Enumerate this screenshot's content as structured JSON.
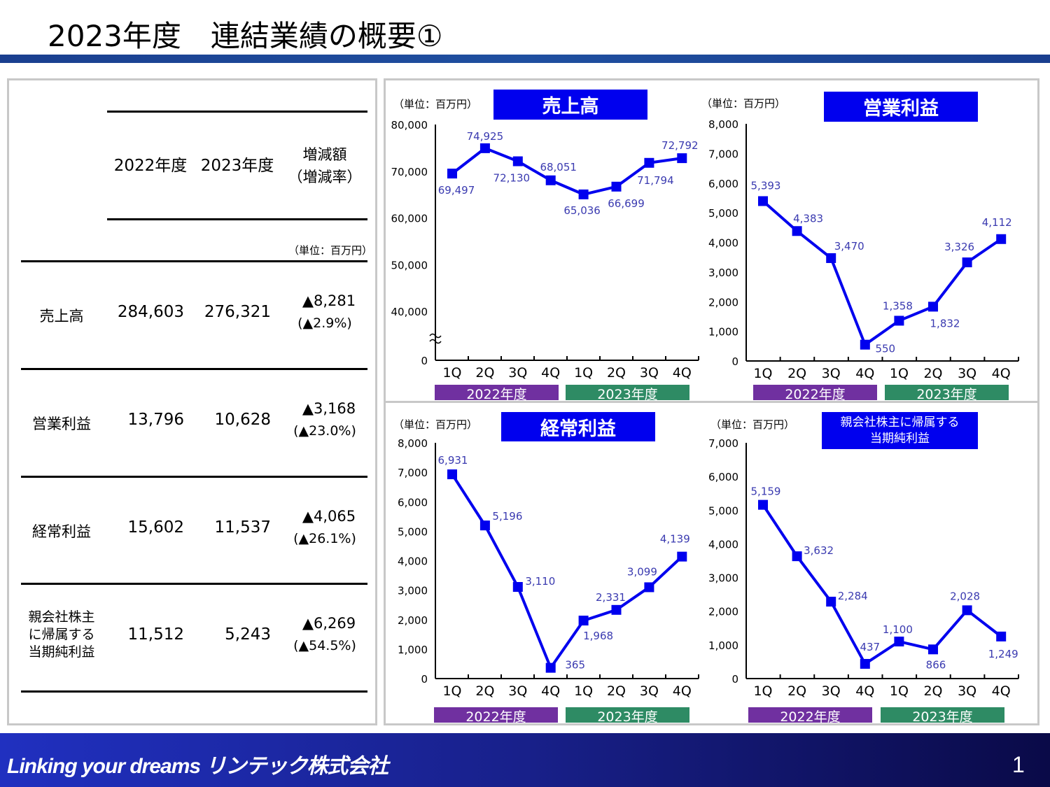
{
  "title": "2023年度　連結業績の概要①",
  "table": {
    "headers": {
      "y2022": "2022年度",
      "y2023": "2023年度",
      "change": "増減額",
      "rate": "（増減率）"
    },
    "unit": "（単位：百万円）",
    "rows": [
      {
        "label": "売上高",
        "y2022": "284,603",
        "y2023": "276,321",
        "change": "▲8,281",
        "rate": "(▲2.9%)"
      },
      {
        "label": "営業利益",
        "y2022": "13,796",
        "y2023": "10,628",
        "change": "▲3,168",
        "rate": "(▲23.0%)"
      },
      {
        "label": "経常利益",
        "y2022": "15,602",
        "y2023": "11,537",
        "change": "▲4,065",
        "rate": "(▲26.1%)"
      },
      {
        "label": "親会社株主\nに帰属する\n当期純利益",
        "y2022": "11,512",
        "y2023": "5,243",
        "change": "▲6,269",
        "rate": "(▲54.5%)"
      }
    ]
  },
  "chart_data": [
    {
      "type": "line",
      "title": "売上高",
      "unit": "（単位：百万円）",
      "categories": [
        "1Q",
        "2Q",
        "3Q",
        "4Q",
        "1Q",
        "2Q",
        "3Q",
        "4Q"
      ],
      "groups": [
        "2022年度",
        "2023年度"
      ],
      "values": [
        69497,
        74925,
        72130,
        68051,
        65036,
        66699,
        71794,
        72792
      ],
      "ylim": [
        0,
        80000
      ],
      "yticks": [
        0,
        40000,
        50000,
        60000,
        70000,
        80000
      ],
      "axis_break": [
        0,
        40000
      ],
      "grid": false
    },
    {
      "type": "line",
      "title": "営業利益",
      "unit": "（単位：百万円）",
      "categories": [
        "1Q",
        "2Q",
        "3Q",
        "4Q",
        "1Q",
        "2Q",
        "3Q",
        "4Q"
      ],
      "groups": [
        "2022年度",
        "2023年度"
      ],
      "values": [
        5393,
        4383,
        3470,
        550,
        1358,
        1832,
        3326,
        4112
      ],
      "ylim": [
        0,
        8000
      ],
      "yticks": [
        0,
        1000,
        2000,
        3000,
        4000,
        5000,
        6000,
        7000,
        8000
      ],
      "grid": false
    },
    {
      "type": "line",
      "title": "経常利益",
      "unit": "（単位：百万円）",
      "categories": [
        "1Q",
        "2Q",
        "3Q",
        "4Q",
        "1Q",
        "2Q",
        "3Q",
        "4Q"
      ],
      "groups": [
        "2022年度",
        "2023年度"
      ],
      "values": [
        6931,
        5196,
        3110,
        365,
        1968,
        2331,
        3099,
        4139
      ],
      "ylim": [
        0,
        8000
      ],
      "yticks": [
        0,
        1000,
        2000,
        3000,
        4000,
        5000,
        6000,
        7000,
        8000
      ],
      "grid": false
    },
    {
      "type": "line",
      "title": "親会社株主に帰属する\n当期純利益",
      "unit": "（単位：百万円）",
      "categories": [
        "1Q",
        "2Q",
        "3Q",
        "4Q",
        "1Q",
        "2Q",
        "3Q",
        "4Q"
      ],
      "groups": [
        "2022年度",
        "2023年度"
      ],
      "values": [
        5159,
        3632,
        2284,
        437,
        1100,
        866,
        2028,
        1249
      ],
      "ylim": [
        0,
        7000
      ],
      "yticks": [
        0,
        1000,
        2000,
        3000,
        4000,
        5000,
        6000,
        7000
      ],
      "grid": false
    }
  ],
  "colors": {
    "line": "#0000ee",
    "title_box": "#0000ee",
    "group_2022": "#7030a0",
    "group_2023": "#2e8b64",
    "data_label": "#3a3ab0"
  },
  "footer": {
    "slogan": "Linking your dreams リンテック株式会社",
    "page": "1"
  }
}
